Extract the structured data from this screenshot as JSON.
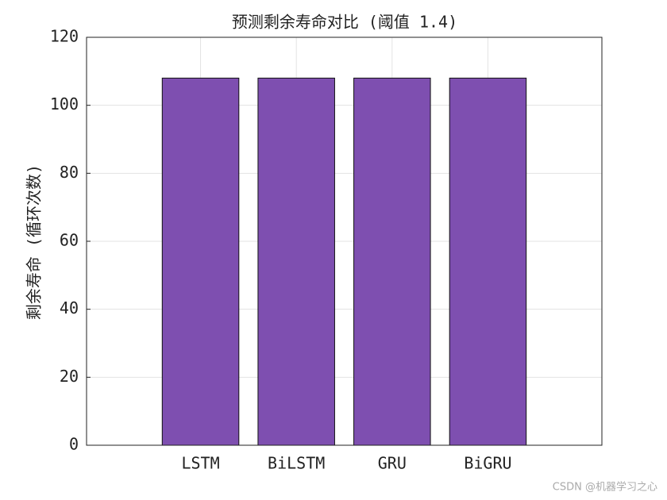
{
  "chart_data": {
    "type": "bar",
    "title": "预测剩余寿命对比 (阈值 1.4)",
    "y_label": "剩余寿命 (循环次数)",
    "categories": [
      "LSTM",
      "BiLSTM",
      "GRU",
      "BiGRU"
    ],
    "values": [
      108,
      108,
      108,
      108
    ],
    "color": "#7e4fb0",
    "ylim": [
      0,
      120
    ],
    "yticks": [
      0,
      20,
      40,
      60,
      80,
      100,
      120
    ],
    "grid": true
  },
  "watermark": "CSDN @机器学习之心"
}
